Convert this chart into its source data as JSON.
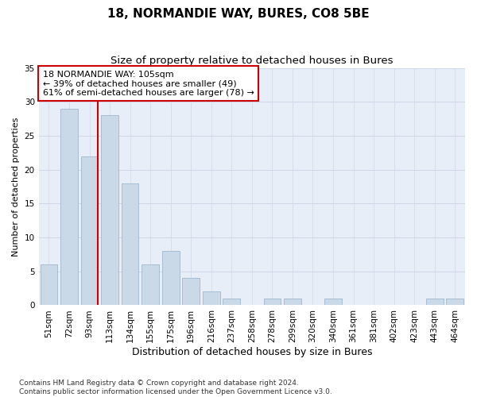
{
  "title": "18, NORMANDIE WAY, BURES, CO8 5BE",
  "subtitle": "Size of property relative to detached houses in Bures",
  "xlabel": "Distribution of detached houses by size in Bures",
  "ylabel": "Number of detached properties",
  "bar_labels": [
    "51sqm",
    "72sqm",
    "93sqm",
    "113sqm",
    "134sqm",
    "155sqm",
    "175sqm",
    "196sqm",
    "216sqm",
    "237sqm",
    "258sqm",
    "278sqm",
    "299sqm",
    "320sqm",
    "340sqm",
    "361sqm",
    "381sqm",
    "402sqm",
    "423sqm",
    "443sqm",
    "464sqm"
  ],
  "bar_values": [
    6,
    29,
    22,
    28,
    18,
    6,
    8,
    4,
    2,
    1,
    0,
    1,
    1,
    0,
    1,
    0,
    0,
    0,
    0,
    1,
    1
  ],
  "bar_color": "#c9d9e8",
  "bar_edge_color": "#a0b8cc",
  "vline_x_index": 2,
  "vline_color": "#cc0000",
  "annotation_text": "18 NORMANDIE WAY: 105sqm\n← 39% of detached houses are smaller (49)\n61% of semi-detached houses are larger (78) →",
  "annotation_box_color": "#ffffff",
  "annotation_box_edge_color": "#cc0000",
  "ylim": [
    0,
    35
  ],
  "yticks": [
    0,
    5,
    10,
    15,
    20,
    25,
    30,
    35
  ],
  "grid_color": "#d0d8e8",
  "background_color": "#e8eef8",
  "footnote": "Contains HM Land Registry data © Crown copyright and database right 2024.\nContains public sector information licensed under the Open Government Licence v3.0.",
  "title_fontsize": 11,
  "subtitle_fontsize": 9.5,
  "xlabel_fontsize": 9,
  "ylabel_fontsize": 8,
  "tick_fontsize": 7.5,
  "annotation_fontsize": 8,
  "footnote_fontsize": 6.5
}
